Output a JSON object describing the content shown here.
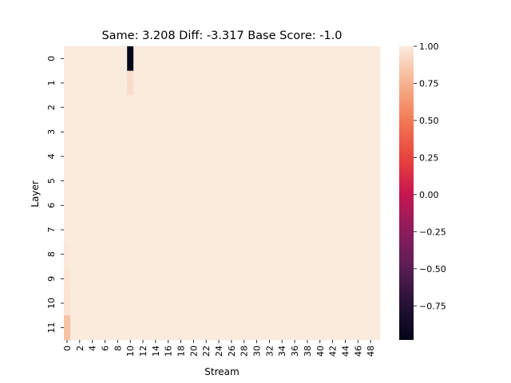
{
  "chart_data": {
    "type": "heatmap",
    "title": "Same: 3.208 Diff: -3.317 Base Score: -1.0",
    "xlabel": "Stream",
    "ylabel": "Layer",
    "rows": 12,
    "cols": 50,
    "x_tick_labels": [
      "0",
      "2",
      "4",
      "6",
      "8",
      "10",
      "12",
      "14",
      "16",
      "18",
      "20",
      "22",
      "24",
      "26",
      "28",
      "30",
      "32",
      "34",
      "36",
      "38",
      "40",
      "42",
      "44",
      "46",
      "48"
    ],
    "y_tick_labels": [
      "0",
      "1",
      "2",
      "3",
      "4",
      "5",
      "6",
      "7",
      "8",
      "9",
      "10",
      "11"
    ],
    "default_value": 1.0,
    "cells": [
      {
        "row": 0,
        "col": 10,
        "value": -0.98
      },
      {
        "row": 1,
        "col": 10,
        "value": 0.94
      },
      {
        "row": 8,
        "col": 0,
        "value": 0.985
      },
      {
        "row": 9,
        "col": 0,
        "value": 0.975
      },
      {
        "row": 10,
        "col": 0,
        "value": 0.965
      },
      {
        "row": 11,
        "col": 0,
        "value": 0.82
      }
    ],
    "colorbar": {
      "vmin": -0.98,
      "vmax": 1.0,
      "ticks": [
        "1.00",
        "0.75",
        "0.50",
        "0.25",
        "0.00",
        "−0.25",
        "−0.50",
        "−0.75"
      ],
      "tick_values": [
        1.0,
        0.75,
        0.5,
        0.25,
        0.0,
        -0.25,
        -0.5,
        -0.75
      ]
    },
    "colormap": "rocket",
    "grid": false
  }
}
